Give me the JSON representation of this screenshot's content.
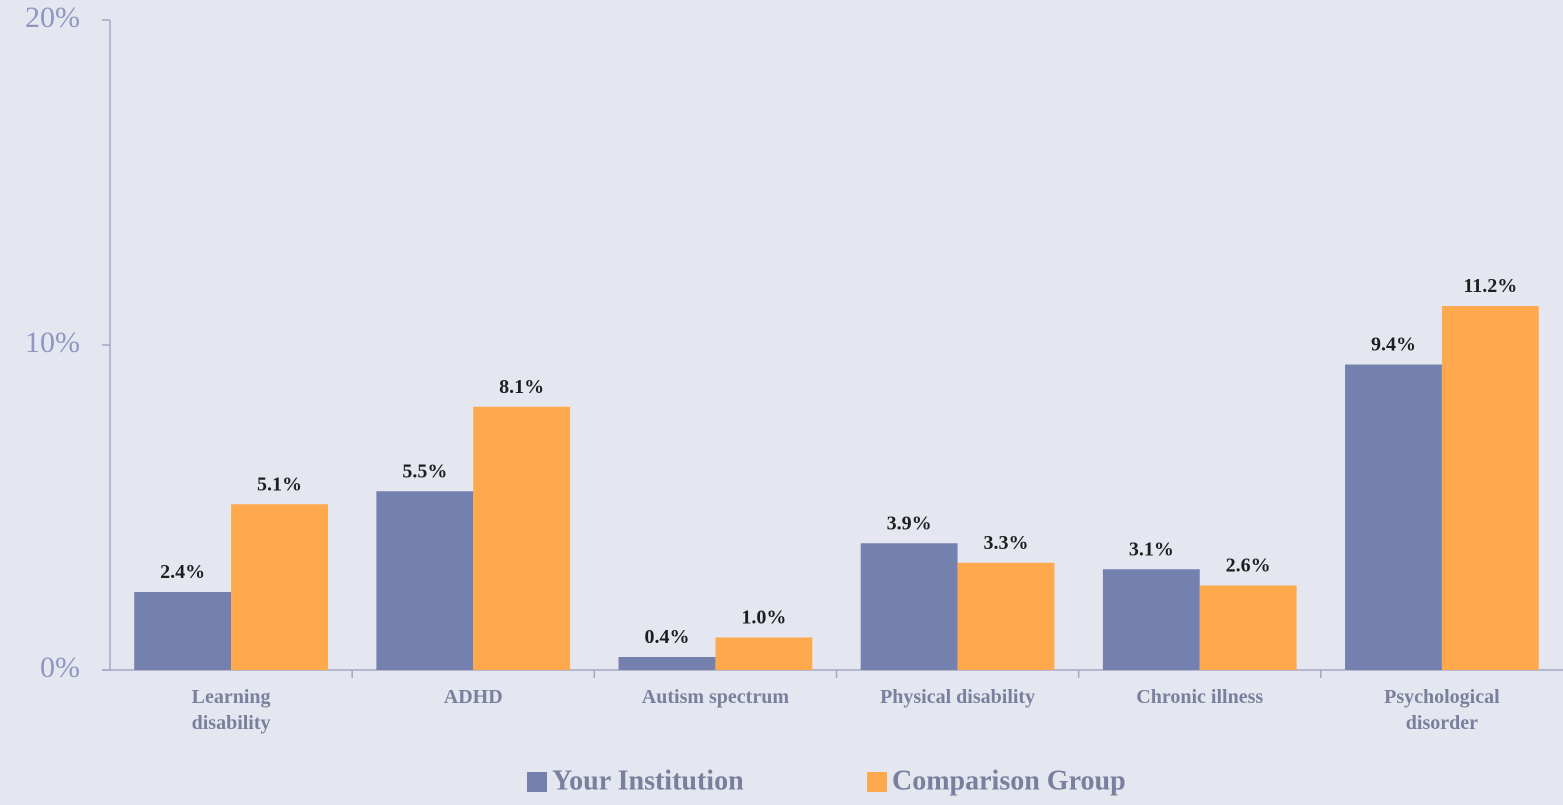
{
  "chart_data": {
    "type": "bar",
    "categories": [
      "Learning disability",
      "ADHD",
      "Autism spectrum",
      "Physical disability",
      "Chronic illness",
      "Psychological disorder"
    ],
    "series": [
      {
        "name": "Your Institution",
        "color": "#7480ad",
        "values": [
          2.4,
          5.5,
          0.4,
          3.9,
          3.1,
          9.4
        ],
        "value_labels": [
          "2.4%",
          "5.5%",
          "0.4%",
          "3.9%",
          "3.1%",
          "9.4%"
        ]
      },
      {
        "name": "Comparison Group",
        "color": "#ffa94f",
        "values": [
          5.1,
          8.1,
          1.0,
          3.3,
          2.6,
          11.2
        ],
        "value_labels": [
          "5.1%",
          "8.1%",
          "1.0%",
          "3.3%",
          "2.6%",
          "11.2%"
        ]
      }
    ],
    "ylim": [
      0,
      20
    ],
    "yticks": [
      {
        "value": 0,
        "label": "0%"
      },
      {
        "value": 10,
        "label": "10%"
      },
      {
        "value": 20,
        "label": "20%"
      }
    ],
    "grid": false,
    "legend": "bottom"
  }
}
